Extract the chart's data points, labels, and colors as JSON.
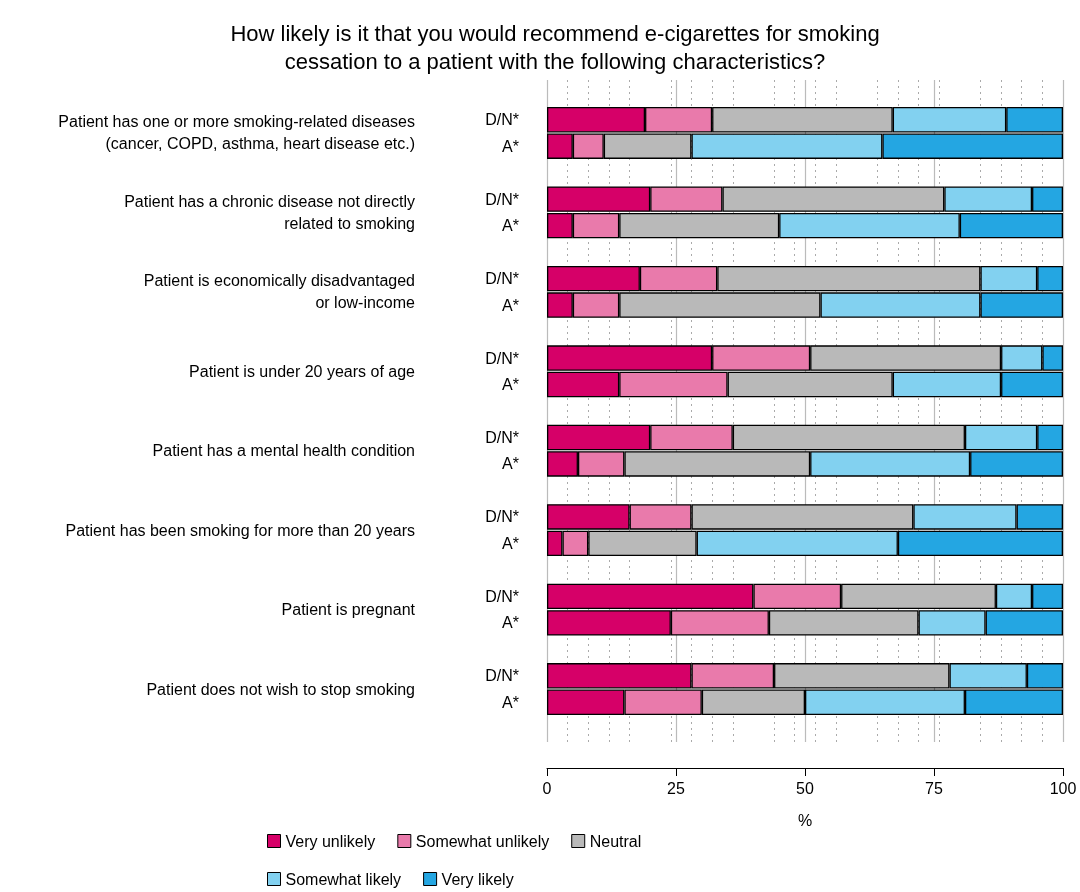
{
  "chart_data": {
    "type": "bar",
    "orientation": "horizontal",
    "stacked": true,
    "title": "How likely is it that you would recommend e-cigarettes for smoking\ncessation to a patient with the following characteristics?",
    "xlabel": "%",
    "categories": [
      null,
      "D/N*",
      "A*",
      null,
      "D/N*",
      "A*",
      null,
      "D/N*",
      "A*",
      null,
      "D/N*",
      "A*",
      null,
      "D/N*",
      "A*",
      null,
      "D/N*",
      "A*",
      null,
      "D/N*",
      "A*",
      null,
      "D/N*",
      "A*",
      null
    ],
    "series": [
      {
        "name": "Very unlikely",
        "color": "#d60068",
        "values": [
          null,
          19,
          5,
          null,
          20,
          5,
          null,
          18,
          5,
          null,
          32,
          14,
          null,
          20,
          6,
          null,
          16,
          3,
          null,
          40,
          24,
          null,
          28,
          15,
          null
        ]
      },
      {
        "name": "Somewhat unlikely",
        "color": "#e97aab",
        "values": [
          null,
          13,
          6,
          null,
          14,
          9,
          null,
          15,
          9,
          null,
          19,
          21,
          null,
          16,
          9,
          null,
          12,
          5,
          null,
          17,
          19,
          null,
          16,
          15,
          null
        ]
      },
      {
        "name": "Neutral",
        "color": "#b9b9b9",
        "values": [
          null,
          35,
          17,
          null,
          43,
          31,
          null,
          51,
          39,
          null,
          37,
          32,
          null,
          45,
          36,
          null,
          43,
          21,
          null,
          30,
          29,
          null,
          34,
          20,
          null
        ]
      },
      {
        "name": "Somewhat likely",
        "color": "#82d1f0",
        "values": [
          null,
          22,
          37,
          null,
          17,
          35,
          null,
          11,
          31,
          null,
          8,
          21,
          null,
          14,
          31,
          null,
          20,
          39,
          null,
          7,
          13,
          null,
          15,
          31,
          null
        ]
      },
      {
        "name": "Very likely",
        "color": "#24a6e2",
        "values": [
          null,
          11,
          35,
          null,
          6,
          20,
          null,
          5,
          16,
          null,
          4,
          12,
          null,
          5,
          18,
          null,
          9,
          32,
          null,
          6,
          15,
          null,
          7,
          19,
          null
        ]
      }
    ],
    "annotations": [
      "Patient has one or more smoking-related diseases\n(cancer, COPD, asthma, heart disease etc.)",
      "Patient has a chronic disease not directly\nrelated to smoking",
      "Patient is economically disadvantaged\nor low-income",
      "Patient is under 20 years of age",
      "Patient has a mental health condition",
      "Patient has been smoking for more than 20 years",
      "Patient is pregnant",
      "Patient does not wish to stop smoking"
    ],
    "xlim": [
      0,
      100
    ],
    "xticks": [
      0,
      25,
      50,
      75,
      100
    ],
    "grid": "x",
    "legend": "bottom left"
  }
}
